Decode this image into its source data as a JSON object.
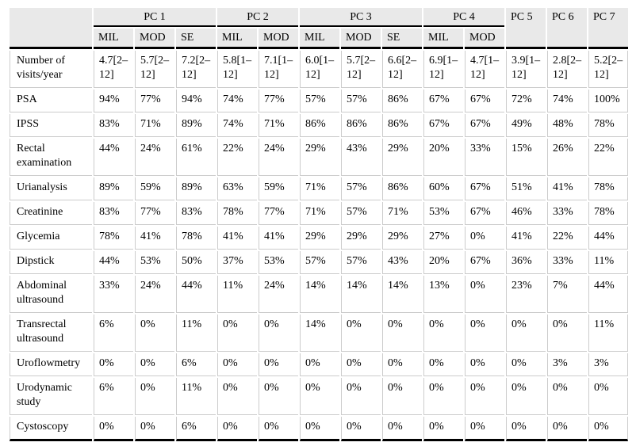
{
  "table": {
    "colors": {
      "header_bg": "#e9e9e9",
      "rule_black": "#000000",
      "grid": "#cccccc"
    },
    "header": {
      "corner": "",
      "groups": [
        {
          "label": "PC 1",
          "subcols": [
            "MIL",
            "MOD",
            "SE"
          ]
        },
        {
          "label": "PC 2",
          "subcols": [
            "MIL",
            "MOD"
          ]
        },
        {
          "label": "PC 3",
          "subcols": [
            "MIL",
            "MOD",
            "SE"
          ]
        },
        {
          "label": "PC 4",
          "subcols": [
            "MIL",
            "MOD"
          ]
        },
        {
          "label": "PC 5",
          "subcols": []
        },
        {
          "label": "PC 6",
          "subcols": []
        },
        {
          "label": "PC 7",
          "subcols": []
        }
      ]
    },
    "rows": [
      {
        "label": "Number of visits/year",
        "values": [
          "4.7[2–12]",
          "5.7[2–12]",
          "7.2[2–12]",
          "5.8[1–12]",
          "7.1[1–12]",
          "6.0[1–12]",
          "5.7[2–12]",
          "6.6[2–12]",
          "6.9[1–12]",
          "4.7[1–12]",
          "3.9[1–12]",
          "2.8[2–12]",
          "5.2[2–12]"
        ]
      },
      {
        "label": "PSA",
        "values": [
          "94%",
          "77%",
          "94%",
          "74%",
          "77%",
          "57%",
          "57%",
          "86%",
          "67%",
          "67%",
          "72%",
          "74%",
          "100%"
        ]
      },
      {
        "label": "IPSS",
        "values": [
          "83%",
          "71%",
          "89%",
          "74%",
          "71%",
          "86%",
          "86%",
          "86%",
          "67%",
          "67%",
          "49%",
          "48%",
          "78%"
        ]
      },
      {
        "label": "Rectal examination",
        "values": [
          "44%",
          "24%",
          "61%",
          "22%",
          "24%",
          "29%",
          "43%",
          "29%",
          "20%",
          "33%",
          "15%",
          "26%",
          "22%"
        ]
      },
      {
        "label": "Urianalysis",
        "values": [
          "89%",
          "59%",
          "89%",
          "63%",
          "59%",
          "71%",
          "57%",
          "86%",
          "60%",
          "67%",
          "51%",
          "41%",
          "78%"
        ]
      },
      {
        "label": "Creatinine",
        "values": [
          "83%",
          "77%",
          "83%",
          "78%",
          "77%",
          "71%",
          "57%",
          "71%",
          "53%",
          "67%",
          "46%",
          "33%",
          "78%"
        ]
      },
      {
        "label": "Glycemia",
        "values": [
          "78%",
          "41%",
          "78%",
          "41%",
          "41%",
          "29%",
          "29%",
          "29%",
          "27%",
          "0%",
          "41%",
          "22%",
          "44%"
        ]
      },
      {
        "label": "Dipstick",
        "values": [
          "44%",
          "53%",
          "50%",
          "37%",
          "53%",
          "57%",
          "57%",
          "43%",
          "20%",
          "67%",
          "36%",
          "33%",
          "11%"
        ]
      },
      {
        "label": "Abdominal ultrasound",
        "values": [
          "33%",
          "24%",
          "44%",
          "11%",
          "24%",
          "14%",
          "14%",
          "14%",
          "13%",
          "0%",
          "23%",
          "7%",
          "44%"
        ]
      },
      {
        "label": "Transrectal ultrasound",
        "values": [
          "6%",
          "0%",
          "11%",
          "0%",
          "0%",
          "14%",
          "0%",
          "0%",
          "0%",
          "0%",
          "0%",
          "0%",
          "11%"
        ]
      },
      {
        "label": "Uroflowmetry",
        "values": [
          "0%",
          "0%",
          "6%",
          "0%",
          "0%",
          "0%",
          "0%",
          "0%",
          "0%",
          "0%",
          "0%",
          "3%",
          "3%"
        ]
      },
      {
        "label": "Urodynamic study",
        "values": [
          "6%",
          "0%",
          "11%",
          "0%",
          "0%",
          "0%",
          "0%",
          "0%",
          "0%",
          "0%",
          "0%",
          "0%",
          "0%"
        ]
      },
      {
        "label": "Cystoscopy",
        "values": [
          "0%",
          "0%",
          "6%",
          "0%",
          "0%",
          "0%",
          "0%",
          "0%",
          "0%",
          "0%",
          "0%",
          "0%",
          "0%"
        ]
      }
    ]
  }
}
